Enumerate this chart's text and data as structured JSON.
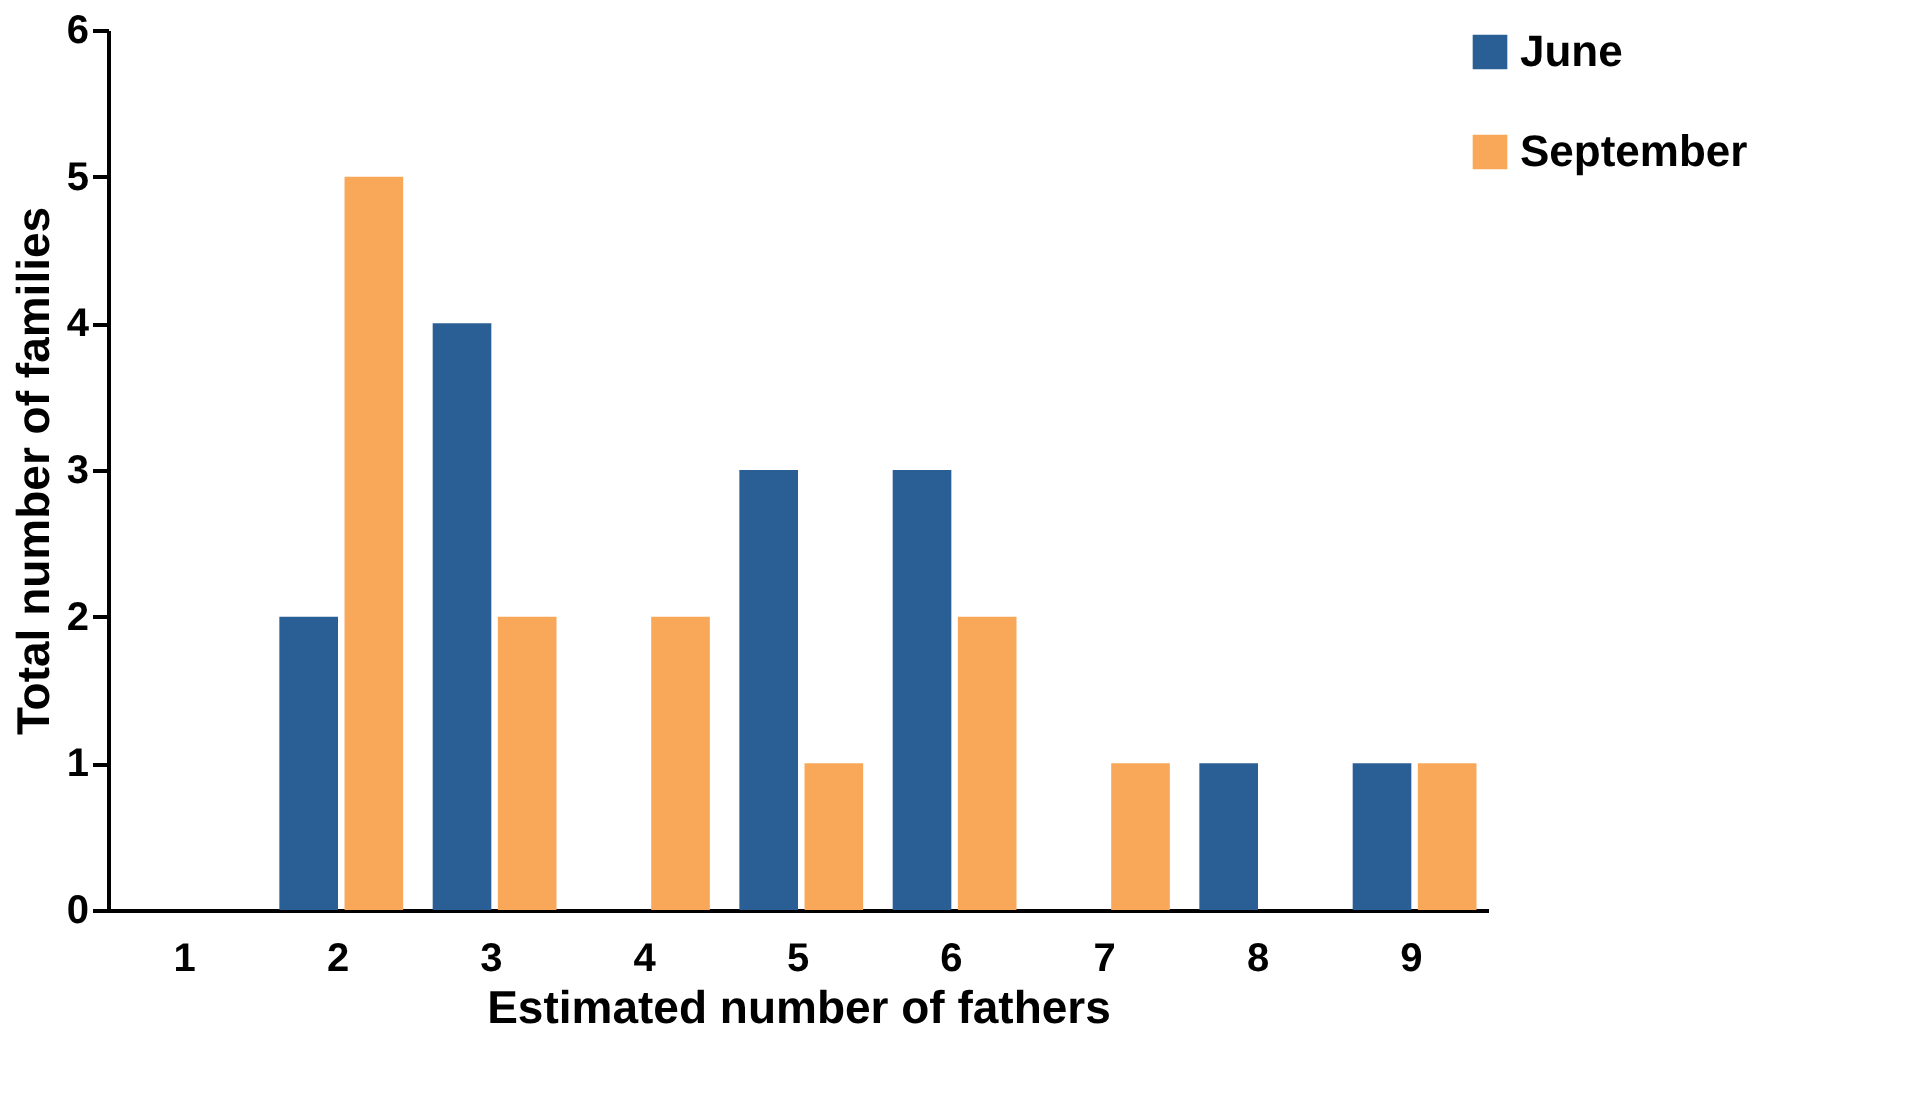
{
  "chart_data": {
    "type": "bar",
    "xlabel": "Estimated number of fathers",
    "ylabel": "Total number of families",
    "categories": [
      "1",
      "2",
      "3",
      "4",
      "5",
      "6",
      "7",
      "8",
      "9"
    ],
    "series": [
      {
        "name": "June",
        "color": "#2a5f95",
        "values": [
          0,
          2,
          4,
          0,
          3,
          3,
          0,
          1,
          1
        ]
      },
      {
        "name": "September",
        "color": "#f9a85a",
        "values": [
          0,
          5,
          2,
          2,
          1,
          2,
          1,
          0,
          1
        ]
      }
    ],
    "ylim": [
      0,
      6
    ],
    "yticks": [
      0,
      1,
      2,
      3,
      4,
      5,
      6
    ],
    "grid": false,
    "legend": "right"
  }
}
